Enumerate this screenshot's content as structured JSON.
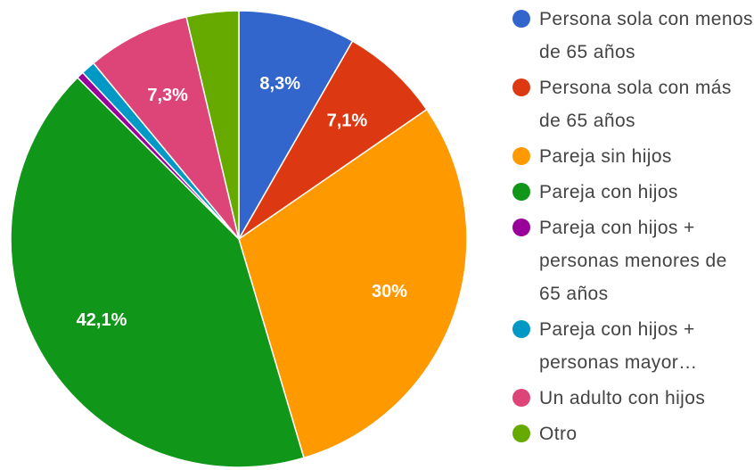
{
  "chart_data": {
    "type": "pie",
    "categories": [
      "Persona sola con menos de 65 años",
      "Persona sola con más de 65 años",
      "Pareja sin hijos",
      "Pareja con hijos",
      "Pareja con hijos + personas menores de 65 años",
      "Pareja con hijos + personas mayor…",
      "Un adulto con hijos",
      "Otro"
    ],
    "values": [
      8.3,
      7.1,
      30,
      42.1,
      0.5,
      1.0,
      7.3,
      3.7
    ],
    "value_labels": [
      "8,3%",
      "7,1%",
      "30%",
      "42,1%",
      null,
      null,
      "7,3%",
      null
    ],
    "colors": [
      "#3366cc",
      "#dc3912",
      "#ff9900",
      "#109618",
      "#990099",
      "#0099c6",
      "#dd4477",
      "#66aa00"
    ],
    "legend": "right"
  }
}
